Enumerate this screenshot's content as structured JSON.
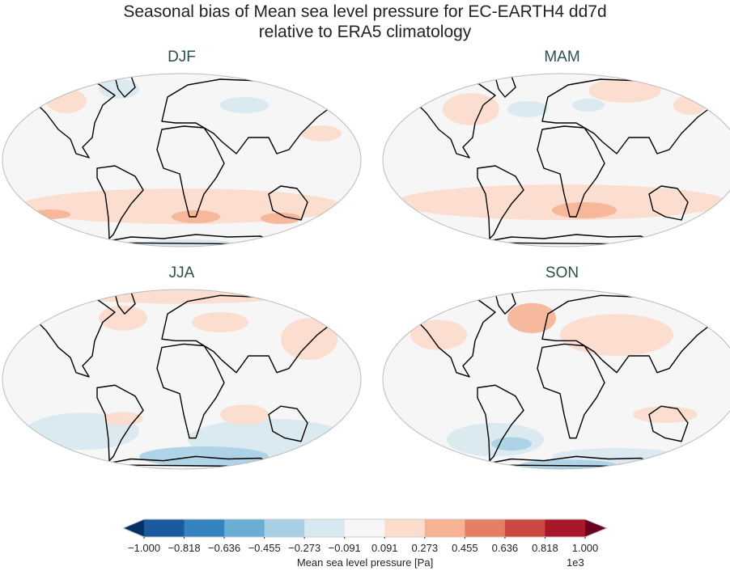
{
  "title_line1": "Seasonal bias of Mean sea level pressure for EC-EARTH4 dd7d",
  "title_line2": "relative to ERA5 climatology",
  "panels": [
    {
      "label": "DJF"
    },
    {
      "label": "MAM"
    },
    {
      "label": "JJA"
    },
    {
      "label": "SON"
    }
  ],
  "colorbar": {
    "label": "Mean sea level pressure [Pa]",
    "exponent": "1e3",
    "ticks": [
      "−1.000",
      "−0.818",
      "−0.636",
      "−0.455",
      "−0.273",
      "−0.091",
      "0.091",
      "0.273",
      "0.455",
      "0.636",
      "0.818",
      "1.000"
    ],
    "colors": [
      "#1c5a9f",
      "#3583bf",
      "#6aadd5",
      "#a8d0e5",
      "#d8e8f1",
      "#f6f6f6",
      "#fcdccb",
      "#f6b293",
      "#e47f66",
      "#cb4742",
      "#a8172a"
    ],
    "under_color": "#073064",
    "over_color": "#6b0220",
    "extend": "both"
  },
  "map_background": "#f6f6f6",
  "coastline_color": "#000000"
}
